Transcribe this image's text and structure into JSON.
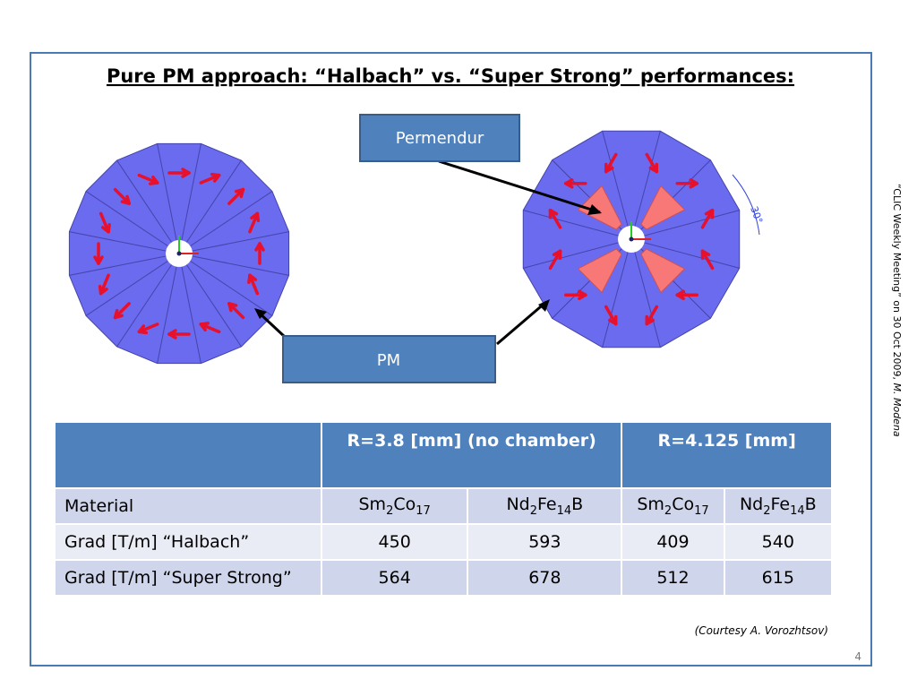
{
  "title": "Pure PM approach: “Halbach” vs. “Super Strong” performances:",
  "labels": {
    "permendur": "Permendur",
    "pm": "PM",
    "angle": "30°"
  },
  "table": {
    "header": [
      "R=3.8 [mm] (no chamber)",
      "R=4.125 [mm]"
    ],
    "material_label": "Material",
    "materials": [
      [
        "Sm",
        "2",
        "Co",
        "17"
      ],
      [
        "Nd",
        "2",
        "Fe",
        "14",
        "B"
      ],
      [
        "Sm",
        "2",
        "Co",
        "17"
      ],
      [
        "Nd",
        "2",
        "Fe",
        "14",
        "B"
      ]
    ],
    "rows": [
      {
        "label": "Grad [T/m] “Halbach”",
        "values": [
          450,
          593,
          409,
          540
        ]
      },
      {
        "label": "Grad [T/m] “Super Strong”",
        "values": [
          564,
          678,
          512,
          615
        ]
      }
    ]
  },
  "courtesy": "(Courtesy A. Vorozhtsov)",
  "side_note": {
    "text": "“CLIC Weekly Meeting” on 30 Oct 2009, ",
    "author": "M. Modena"
  },
  "page_number": "4"
}
